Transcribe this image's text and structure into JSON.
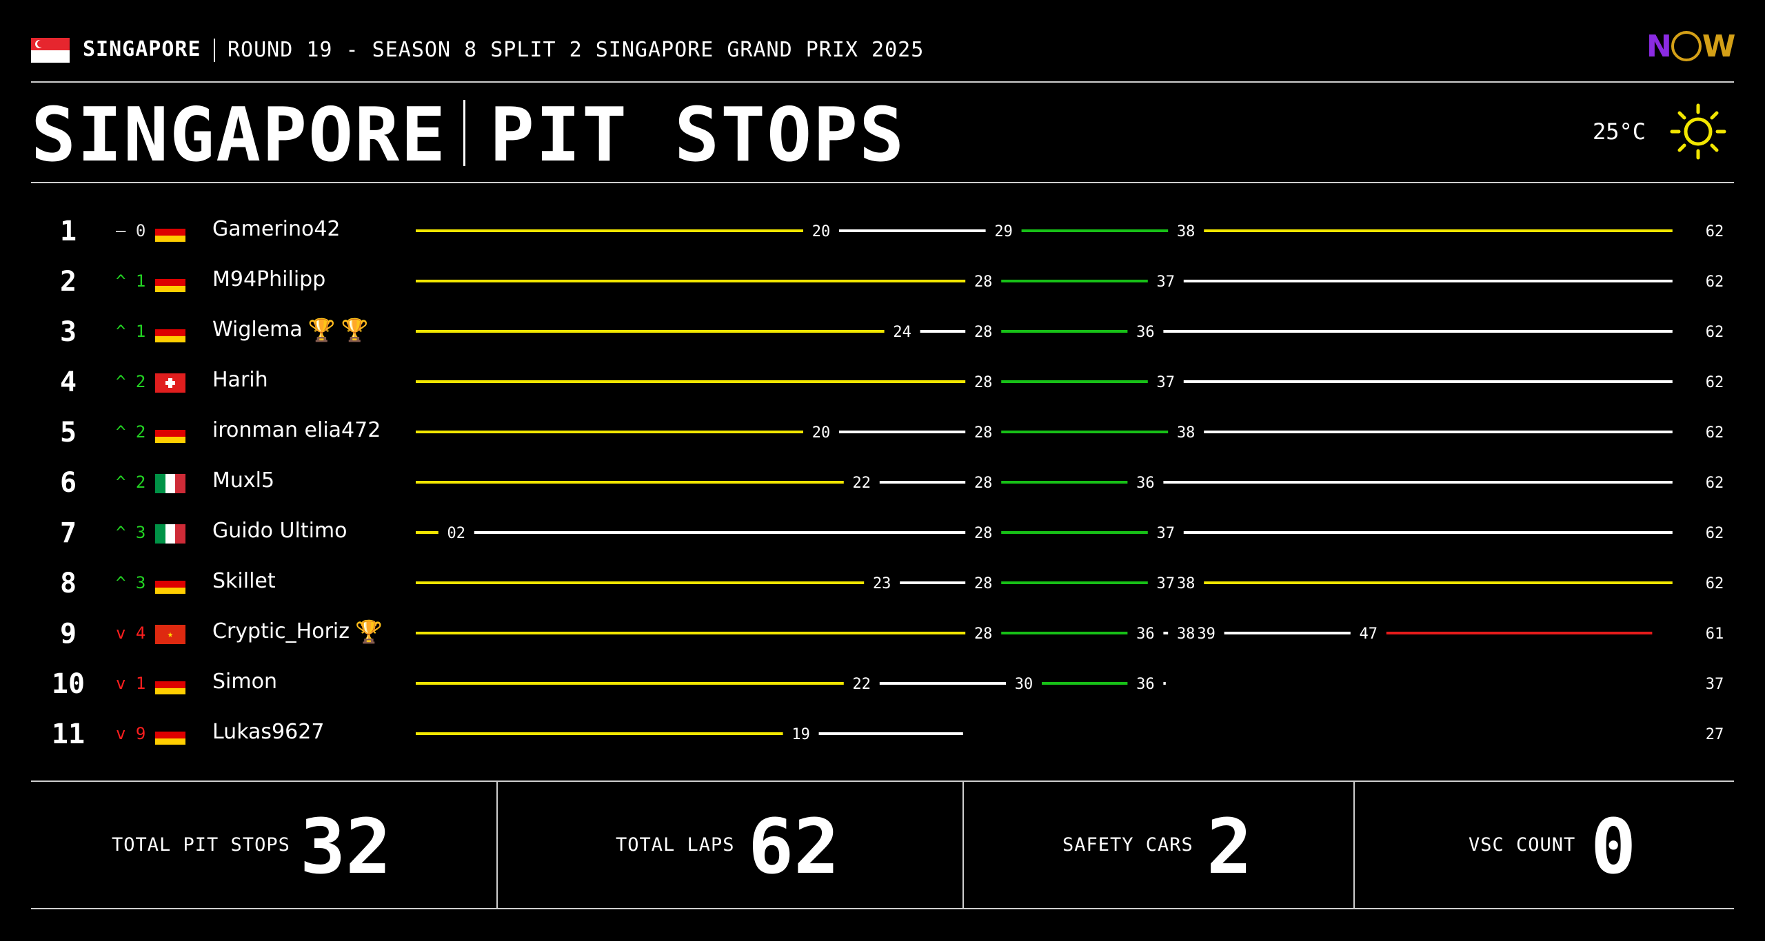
{
  "header": {
    "country": "SINGAPORE",
    "subtitle": "ROUND 19 - SEASON 8 SPLIT 2 SINGAPORE GRAND PRIX 2025",
    "title_left": "SINGAPORE",
    "title_right": "PIT STOPS",
    "temperature": "25°C",
    "weather_icon": "sun-icon",
    "logo_text": {
      "n": "N",
      "w": "W"
    }
  },
  "colors": {
    "yellow": "#f2e600",
    "white": "#ffffff",
    "green": "#17c017",
    "red": "#e61b1b",
    "up": "#22d322",
    "down": "#ff1e1e"
  },
  "chart_data": {
    "type": "stint-timeline",
    "x_range": [
      0,
      62
    ],
    "rows": [
      {
        "position": "1",
        "change": {
          "dir": "same",
          "text": "– 0"
        },
        "flag": "de",
        "driver": "Gamerino42",
        "trophies": 0,
        "stints": [
          {
            "from": 0,
            "to": 20,
            "c": "yellow"
          },
          {
            "from": 20,
            "to": 29,
            "c": "white"
          },
          {
            "from": 29,
            "to": 38,
            "c": "green"
          },
          {
            "from": 38,
            "to": 62,
            "c": "yellow"
          }
        ],
        "labels": [
          {
            "lap": 20,
            "text": "20"
          },
          {
            "lap": 29,
            "text": "29"
          },
          {
            "lap": 38,
            "text": "38"
          }
        ],
        "total": "62"
      },
      {
        "position": "2",
        "change": {
          "dir": "up",
          "text": "^ 1"
        },
        "flag": "de",
        "driver": "M94Philipp",
        "trophies": 0,
        "stints": [
          {
            "from": 0,
            "to": 28,
            "c": "yellow"
          },
          {
            "from": 28,
            "to": 37,
            "c": "green"
          },
          {
            "from": 37,
            "to": 62,
            "c": "white"
          }
        ],
        "labels": [
          {
            "lap": 28,
            "text": "28"
          },
          {
            "lap": 37,
            "text": "37"
          }
        ],
        "total": "62"
      },
      {
        "position": "3",
        "change": {
          "dir": "up",
          "text": "^ 1"
        },
        "flag": "de",
        "driver": "Wiglema",
        "trophies": 2,
        "stints": [
          {
            "from": 0,
            "to": 24,
            "c": "yellow"
          },
          {
            "from": 24,
            "to": 28,
            "c": "white"
          },
          {
            "from": 28,
            "to": 36,
            "c": "green"
          },
          {
            "from": 36,
            "to": 62,
            "c": "white"
          }
        ],
        "labels": [
          {
            "lap": 24,
            "text": "24"
          },
          {
            "lap": 28,
            "text": "28"
          },
          {
            "lap": 36,
            "text": "36"
          }
        ],
        "total": "62"
      },
      {
        "position": "4",
        "change": {
          "dir": "up",
          "text": "^ 2"
        },
        "flag": "ch",
        "driver": "Harih",
        "trophies": 0,
        "stints": [
          {
            "from": 0,
            "to": 28,
            "c": "yellow"
          },
          {
            "from": 28,
            "to": 37,
            "c": "green"
          },
          {
            "from": 37,
            "to": 62,
            "c": "white"
          }
        ],
        "labels": [
          {
            "lap": 28,
            "text": "28"
          },
          {
            "lap": 37,
            "text": "37"
          }
        ],
        "total": "62"
      },
      {
        "position": "5",
        "change": {
          "dir": "up",
          "text": "^ 2"
        },
        "flag": "de",
        "driver": "ironman elia472",
        "trophies": 0,
        "stints": [
          {
            "from": 0,
            "to": 20,
            "c": "yellow"
          },
          {
            "from": 20,
            "to": 28,
            "c": "white"
          },
          {
            "from": 28,
            "to": 38,
            "c": "green"
          },
          {
            "from": 38,
            "to": 62,
            "c": "white"
          }
        ],
        "labels": [
          {
            "lap": 20,
            "text": "20"
          },
          {
            "lap": 28,
            "text": "28"
          },
          {
            "lap": 38,
            "text": "38"
          }
        ],
        "total": "62"
      },
      {
        "position": "6",
        "change": {
          "dir": "up",
          "text": "^ 2"
        },
        "flag": "it",
        "driver": "Muxl5",
        "trophies": 0,
        "stints": [
          {
            "from": 0,
            "to": 22,
            "c": "yellow"
          },
          {
            "from": 22,
            "to": 28,
            "c": "white"
          },
          {
            "from": 28,
            "to": 36,
            "c": "green"
          },
          {
            "from": 36,
            "to": 62,
            "c": "white"
          }
        ],
        "labels": [
          {
            "lap": 22,
            "text": "22"
          },
          {
            "lap": 28,
            "text": "28"
          },
          {
            "lap": 36,
            "text": "36"
          }
        ],
        "total": "62"
      },
      {
        "position": "7",
        "change": {
          "dir": "up",
          "text": "^ 3"
        },
        "flag": "it",
        "driver": "Guido Ultimo",
        "trophies": 0,
        "stints": [
          {
            "from": 0,
            "to": 2,
            "c": "yellow"
          },
          {
            "from": 2,
            "to": 28,
            "c": "white"
          },
          {
            "from": 28,
            "to": 37,
            "c": "green"
          },
          {
            "from": 37,
            "to": 62,
            "c": "white"
          }
        ],
        "labels": [
          {
            "lap": 2,
            "text": "02"
          },
          {
            "lap": 28,
            "text": "28"
          },
          {
            "lap": 37,
            "text": "37"
          }
        ],
        "total": "62"
      },
      {
        "position": "8",
        "change": {
          "dir": "up",
          "text": "^ 3"
        },
        "flag": "de",
        "driver": "Skillet",
        "trophies": 0,
        "stints": [
          {
            "from": 0,
            "to": 23,
            "c": "yellow"
          },
          {
            "from": 23,
            "to": 28,
            "c": "white"
          },
          {
            "from": 28,
            "to": 37,
            "c": "green"
          },
          {
            "from": 38,
            "to": 62,
            "c": "yellow"
          }
        ],
        "labels": [
          {
            "lap": 23,
            "text": "23"
          },
          {
            "lap": 28,
            "text": "28"
          },
          {
            "lap": 37,
            "text": "37"
          },
          {
            "lap": 38,
            "text": "38"
          }
        ],
        "total": "62"
      },
      {
        "position": "9",
        "change": {
          "dir": "down",
          "text": "v 4"
        },
        "flag": "cn",
        "driver": "Cryptic_Horiz",
        "trophies": 1,
        "stints": [
          {
            "from": 0,
            "to": 28,
            "c": "yellow"
          },
          {
            "from": 28,
            "to": 36,
            "c": "green"
          },
          {
            "from": 36,
            "to": 38,
            "c": "white"
          },
          {
            "from": 39,
            "to": 47,
            "c": "white"
          },
          {
            "from": 47,
            "to": 61,
            "c": "red"
          }
        ],
        "labels": [
          {
            "lap": 28,
            "text": "28"
          },
          {
            "lap": 36,
            "text": "36"
          },
          {
            "lap": 38,
            "text": "38"
          },
          {
            "lap": 39,
            "text": "39"
          },
          {
            "lap": 47,
            "text": "47"
          }
        ],
        "total": "61"
      },
      {
        "position": "10",
        "change": {
          "dir": "down",
          "text": "v 1"
        },
        "flag": "de",
        "driver": "Simon",
        "trophies": 0,
        "stints": [
          {
            "from": 0,
            "to": 22,
            "c": "yellow"
          },
          {
            "from": 22,
            "to": 30,
            "c": "white"
          },
          {
            "from": 30,
            "to": 36,
            "c": "green"
          },
          {
            "from": 36,
            "to": 37,
            "c": "white"
          }
        ],
        "labels": [
          {
            "lap": 22,
            "text": "22"
          },
          {
            "lap": 30,
            "text": "30"
          },
          {
            "lap": 36,
            "text": "36"
          }
        ],
        "total": "37"
      },
      {
        "position": "11",
        "change": {
          "dir": "down",
          "text": "v 9"
        },
        "flag": "de",
        "driver": "Lukas9627",
        "trophies": 0,
        "stints": [
          {
            "from": 0,
            "to": 19,
            "c": "yellow"
          },
          {
            "from": 19,
            "to": 27,
            "c": "white"
          }
        ],
        "labels": [
          {
            "lap": 19,
            "text": "19"
          }
        ],
        "total": "27"
      }
    ]
  },
  "stats": [
    {
      "label": "TOTAL PIT STOPS",
      "value": "32"
    },
    {
      "label": "TOTAL LAPS",
      "value": "62"
    },
    {
      "label": "SAFETY CARS",
      "value": "2"
    },
    {
      "label": "VSC COUNT",
      "value": "0"
    }
  ]
}
